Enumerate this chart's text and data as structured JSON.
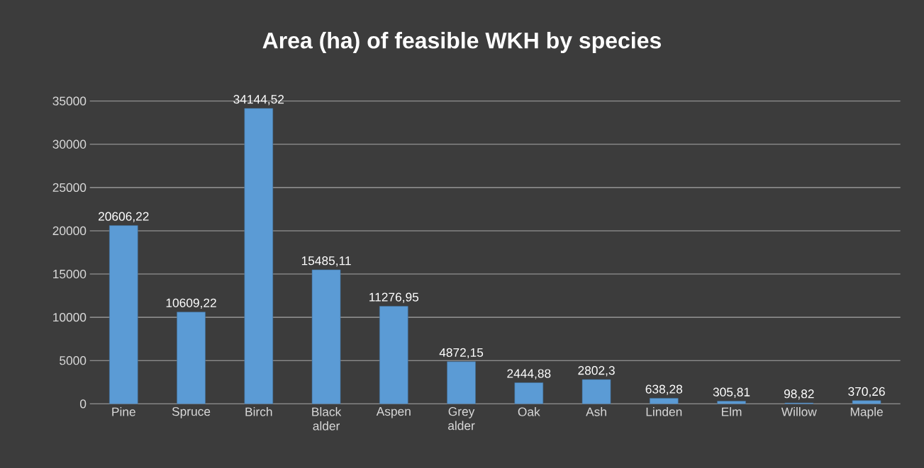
{
  "chart_data": {
    "type": "bar",
    "title": "Area (ha) of feasible WKH by species",
    "categories": [
      "Pine",
      "Spruce",
      "Birch",
      "Black alder",
      "Aspen",
      "Grey alder",
      "Oak",
      "Ash",
      "Linden",
      "Elm",
      "Willow",
      "Maple"
    ],
    "values": [
      20606.22,
      10609.22,
      34144.52,
      15485.11,
      11276.95,
      4872.15,
      2444.88,
      2802.3,
      638.28,
      305.81,
      98.82,
      370.26
    ],
    "value_labels": [
      "20606,22",
      "10609,22",
      "34144,52",
      "15485,11",
      "11276,95",
      "4872,15",
      "2444,88",
      "2802,3",
      "638,28",
      "305,81",
      "98,82",
      "370,26"
    ],
    "color": "#5b9bd5",
    "ylim": [
      0,
      35000
    ],
    "yticks": [
      0,
      5000,
      10000,
      15000,
      20000,
      25000,
      30000,
      35000
    ],
    "grid": "y"
  }
}
